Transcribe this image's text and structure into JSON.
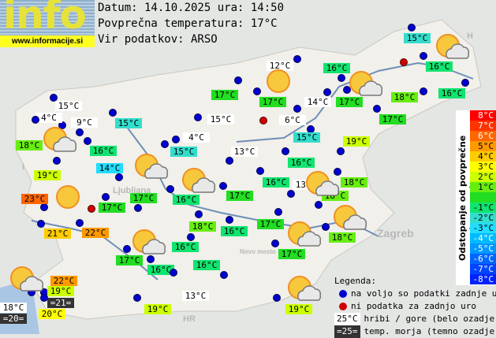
{
  "logo": {
    "text": "info",
    "url": "www.informacije.si"
  },
  "header": {
    "date_line": "Datum: 14.10.2025 ura: 14:50",
    "avg_line": "Povprečna temperatura: 17°C",
    "source_line": "Vir podatkov: ARSO"
  },
  "average_temp": 17,
  "places": [
    "Ljubljana",
    "Zagreb",
    "Novo mesto",
    "HR",
    "I",
    "H"
  ],
  "stations": [
    {
      "temp": "15°C",
      "kind": "mountain"
    },
    {
      "temp": "4°C",
      "kind": "mountain"
    },
    {
      "temp": "9°C",
      "kind": "mountain"
    },
    {
      "temp": "18°C",
      "kind": "normal"
    },
    {
      "temp": "16°C",
      "kind": "normal"
    },
    {
      "temp": "15°C",
      "kind": "normal"
    },
    {
      "temp": "15°C",
      "kind": "mountain"
    },
    {
      "temp": "4°C",
      "kind": "mountain"
    },
    {
      "temp": "15°C",
      "kind": "normal"
    },
    {
      "temp": "13°C",
      "kind": "mountain"
    },
    {
      "temp": "19°C",
      "kind": "normal"
    },
    {
      "temp": "14°C",
      "kind": "normal"
    },
    {
      "temp": "23°C",
      "kind": "normal"
    },
    {
      "temp": "17°C",
      "kind": "normal"
    },
    {
      "temp": "17°C",
      "kind": "normal"
    },
    {
      "temp": "21°C",
      "kind": "normal"
    },
    {
      "temp": "22°C",
      "kind": "normal"
    },
    {
      "temp": "16°C",
      "kind": "normal"
    },
    {
      "temp": "17°C",
      "kind": "normal"
    },
    {
      "temp": "16°C",
      "kind": "normal"
    },
    {
      "temp": "13°C",
      "kind": "mountain"
    },
    {
      "temp": "18°C",
      "kind": "normal"
    },
    {
      "temp": "18°C",
      "kind": "normal"
    },
    {
      "temp": "18°C",
      "kind": "normal"
    },
    {
      "temp": "16°C",
      "kind": "normal"
    },
    {
      "temp": "17°C",
      "kind": "normal"
    },
    {
      "temp": "18°C",
      "kind": "normal"
    },
    {
      "temp": "17°C",
      "kind": "normal"
    },
    {
      "temp": "16°C",
      "kind": "normal"
    },
    {
      "temp": "17°C",
      "kind": "normal"
    },
    {
      "temp": "16°C",
      "kind": "normal"
    },
    {
      "temp": "16°C",
      "kind": "normal"
    },
    {
      "temp": "12°C",
      "kind": "mountain"
    },
    {
      "temp": "16°C",
      "kind": "normal"
    },
    {
      "temp": "17°C",
      "kind": "normal"
    },
    {
      "temp": "14°C",
      "kind": "mountain"
    },
    {
      "temp": "17°C",
      "kind": "normal"
    },
    {
      "temp": "6°C",
      "kind": "mountain"
    },
    {
      "temp": "15°C",
      "kind": "normal"
    },
    {
      "temp": "18°C",
      "kind": "normal"
    },
    {
      "temp": "16°C",
      "kind": "normal"
    },
    {
      "temp": "17°C",
      "kind": "normal"
    },
    {
      "temp": "19°C",
      "kind": "normal"
    },
    {
      "temp": "16°C",
      "kind": "normal"
    },
    {
      "temp": "15°C",
      "kind": "normal"
    },
    {
      "temp": "16°C",
      "kind": "normal"
    },
    {
      "temp": "17°C",
      "kind": "normal"
    },
    {
      "temp": "22°C",
      "kind": "normal"
    },
    {
      "temp": "19°C",
      "kind": "normal"
    },
    {
      "temp": "=21=",
      "kind": "sea"
    },
    {
      "temp": "18°C",
      "kind": "mountain"
    },
    {
      "temp": "=20=",
      "kind": "sea"
    },
    {
      "temp": "20°C",
      "kind": "normal"
    },
    {
      "temp": "19°C",
      "kind": "normal"
    },
    {
      "temp": "13°C",
      "kind": "mountain"
    },
    {
      "temp": "19°C",
      "kind": "normal"
    }
  ],
  "weather_icons": [
    "partly-cloudy",
    "partly-cloudy",
    "partly-cloudy",
    "sunny",
    "partly-cloudy",
    "partly-cloudy",
    "sunny",
    "partly-cloudy",
    "partly-cloudy",
    "partly-cloudy",
    "partly-cloudy",
    "partly-cloudy",
    "partly-cloudy"
  ],
  "scale": {
    "title": "Odstopanje od povprečne temperature:",
    "rows": [
      {
        "label": "8°C",
        "color": "#ff0000"
      },
      {
        "label": "7°C",
        "color": "#ff3300"
      },
      {
        "label": "6°C",
        "color": "#ff6600"
      },
      {
        "label": "5°C",
        "color": "#ff9900"
      },
      {
        "label": "4°C",
        "color": "#ffcc00"
      },
      {
        "label": "3°C",
        "color": "#ffff00"
      },
      {
        "label": "2°C",
        "color": "#ccff00"
      },
      {
        "label": "1°C",
        "color": "#66ee11"
      },
      {
        "label": "",
        "color": "#22dd22"
      },
      {
        "label": "-1°C",
        "color": "#11e46f"
      },
      {
        "label": "-2°C",
        "color": "#33ddcc"
      },
      {
        "label": "-3°C",
        "color": "#22ddff"
      },
      {
        "label": "-4°C",
        "color": "#00bbff"
      },
      {
        "label": "-5°C",
        "color": "#0099ff"
      },
      {
        "label": "-6°C",
        "color": "#0066ff"
      },
      {
        "label": "-7°C",
        "color": "#0044ff"
      },
      {
        "label": "-8°C",
        "color": "#0022ff"
      }
    ]
  },
  "legend": {
    "title": "Legenda:",
    "available": "na voljo so podatki zadnje ure",
    "missing": "ni podatka za zadnjo uro",
    "mountain_sample": "25°C",
    "mountain_text": "hribi / gore (belo ozadje)",
    "sea_sample": "=25=",
    "sea_text": "temp. morja (temno ozadje)"
  }
}
